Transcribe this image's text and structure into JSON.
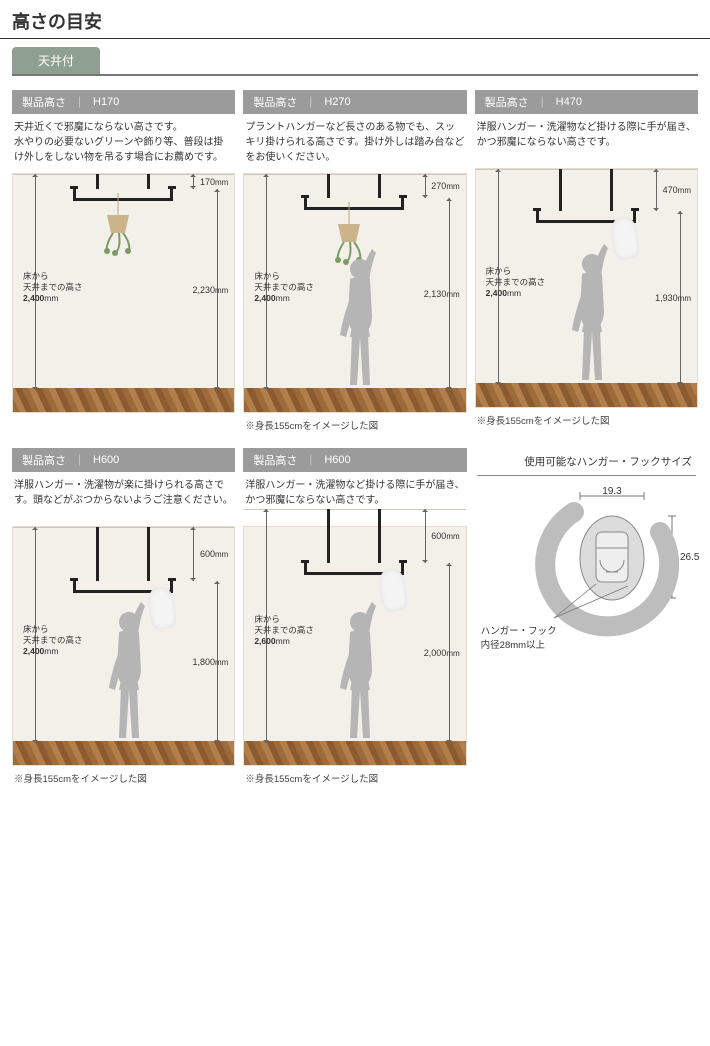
{
  "page_title": "高さの目安",
  "tab_label": "天井付",
  "ceiling_label_prefix": "床から",
  "ceiling_label_mid": "天井までの高さ",
  "person_note": "※身長155cmをイメージした図",
  "colors": {
    "tab_bg": "#8fa090",
    "header_bg": "#9b9b9b",
    "bar": "#222222",
    "silhouette": "#b5b5b5",
    "wall": "#f3f0ea",
    "plant": "#7a9a68"
  },
  "cards": [
    {
      "label": "製品高さ",
      "code": "H170",
      "desc": "天井近くで邪魔にならない高さです。\n水やりの必要ないグリーンや飾り等、普段は掛け外しをしない物を吊るす場合にお薦めです。",
      "drop_mm": 170,
      "bar_to_floor_mm": 2230,
      "ceiling_mm": 2400,
      "has_person": false,
      "has_caption": false,
      "accent": "plant"
    },
    {
      "label": "製品高さ",
      "code": "H270",
      "desc": "プラントハンガーなど長さのある物でも、スッキリ掛けられる高さです。掛け外しは踏み台などをお使いください。",
      "drop_mm": 270,
      "bar_to_floor_mm": 2130,
      "ceiling_mm": 2400,
      "has_person": true,
      "has_caption": true,
      "accent": "plant"
    },
    {
      "label": "製品高さ",
      "code": "H470",
      "desc": "洋服ハンガー・洗濯物など掛ける際に手が届き、かつ邪魔にならない高さです。",
      "drop_mm": 470,
      "bar_to_floor_mm": 1930,
      "ceiling_mm": 2400,
      "has_person": true,
      "has_caption": true,
      "accent": "cloth"
    },
    {
      "label": "製品高さ",
      "code": "H600",
      "desc": "洋服ハンガー・洗濯物が楽に掛けられる高さです。頭などがぶつからないようご注意ください。",
      "drop_mm": 600,
      "bar_to_floor_mm": 1800,
      "ceiling_mm": 2400,
      "has_person": true,
      "has_caption": true,
      "accent": "cloth"
    },
    {
      "label": "製品高さ",
      "code": "H600",
      "desc": "洋服ハンガー・洗濯物など掛ける際に手が届き、かつ邪魔にならない高さです。",
      "drop_mm": 600,
      "bar_to_floor_mm": 2000,
      "ceiling_mm": 2600,
      "has_person": true,
      "has_caption": true,
      "accent": "cloth"
    }
  ],
  "hook": {
    "title": "使用可能なハンガー・フックサイズ",
    "width_mm": 19.3,
    "height_mm": 26.5,
    "note_line1": "ハンガー・フック",
    "note_line2": "内径28mm以上"
  }
}
